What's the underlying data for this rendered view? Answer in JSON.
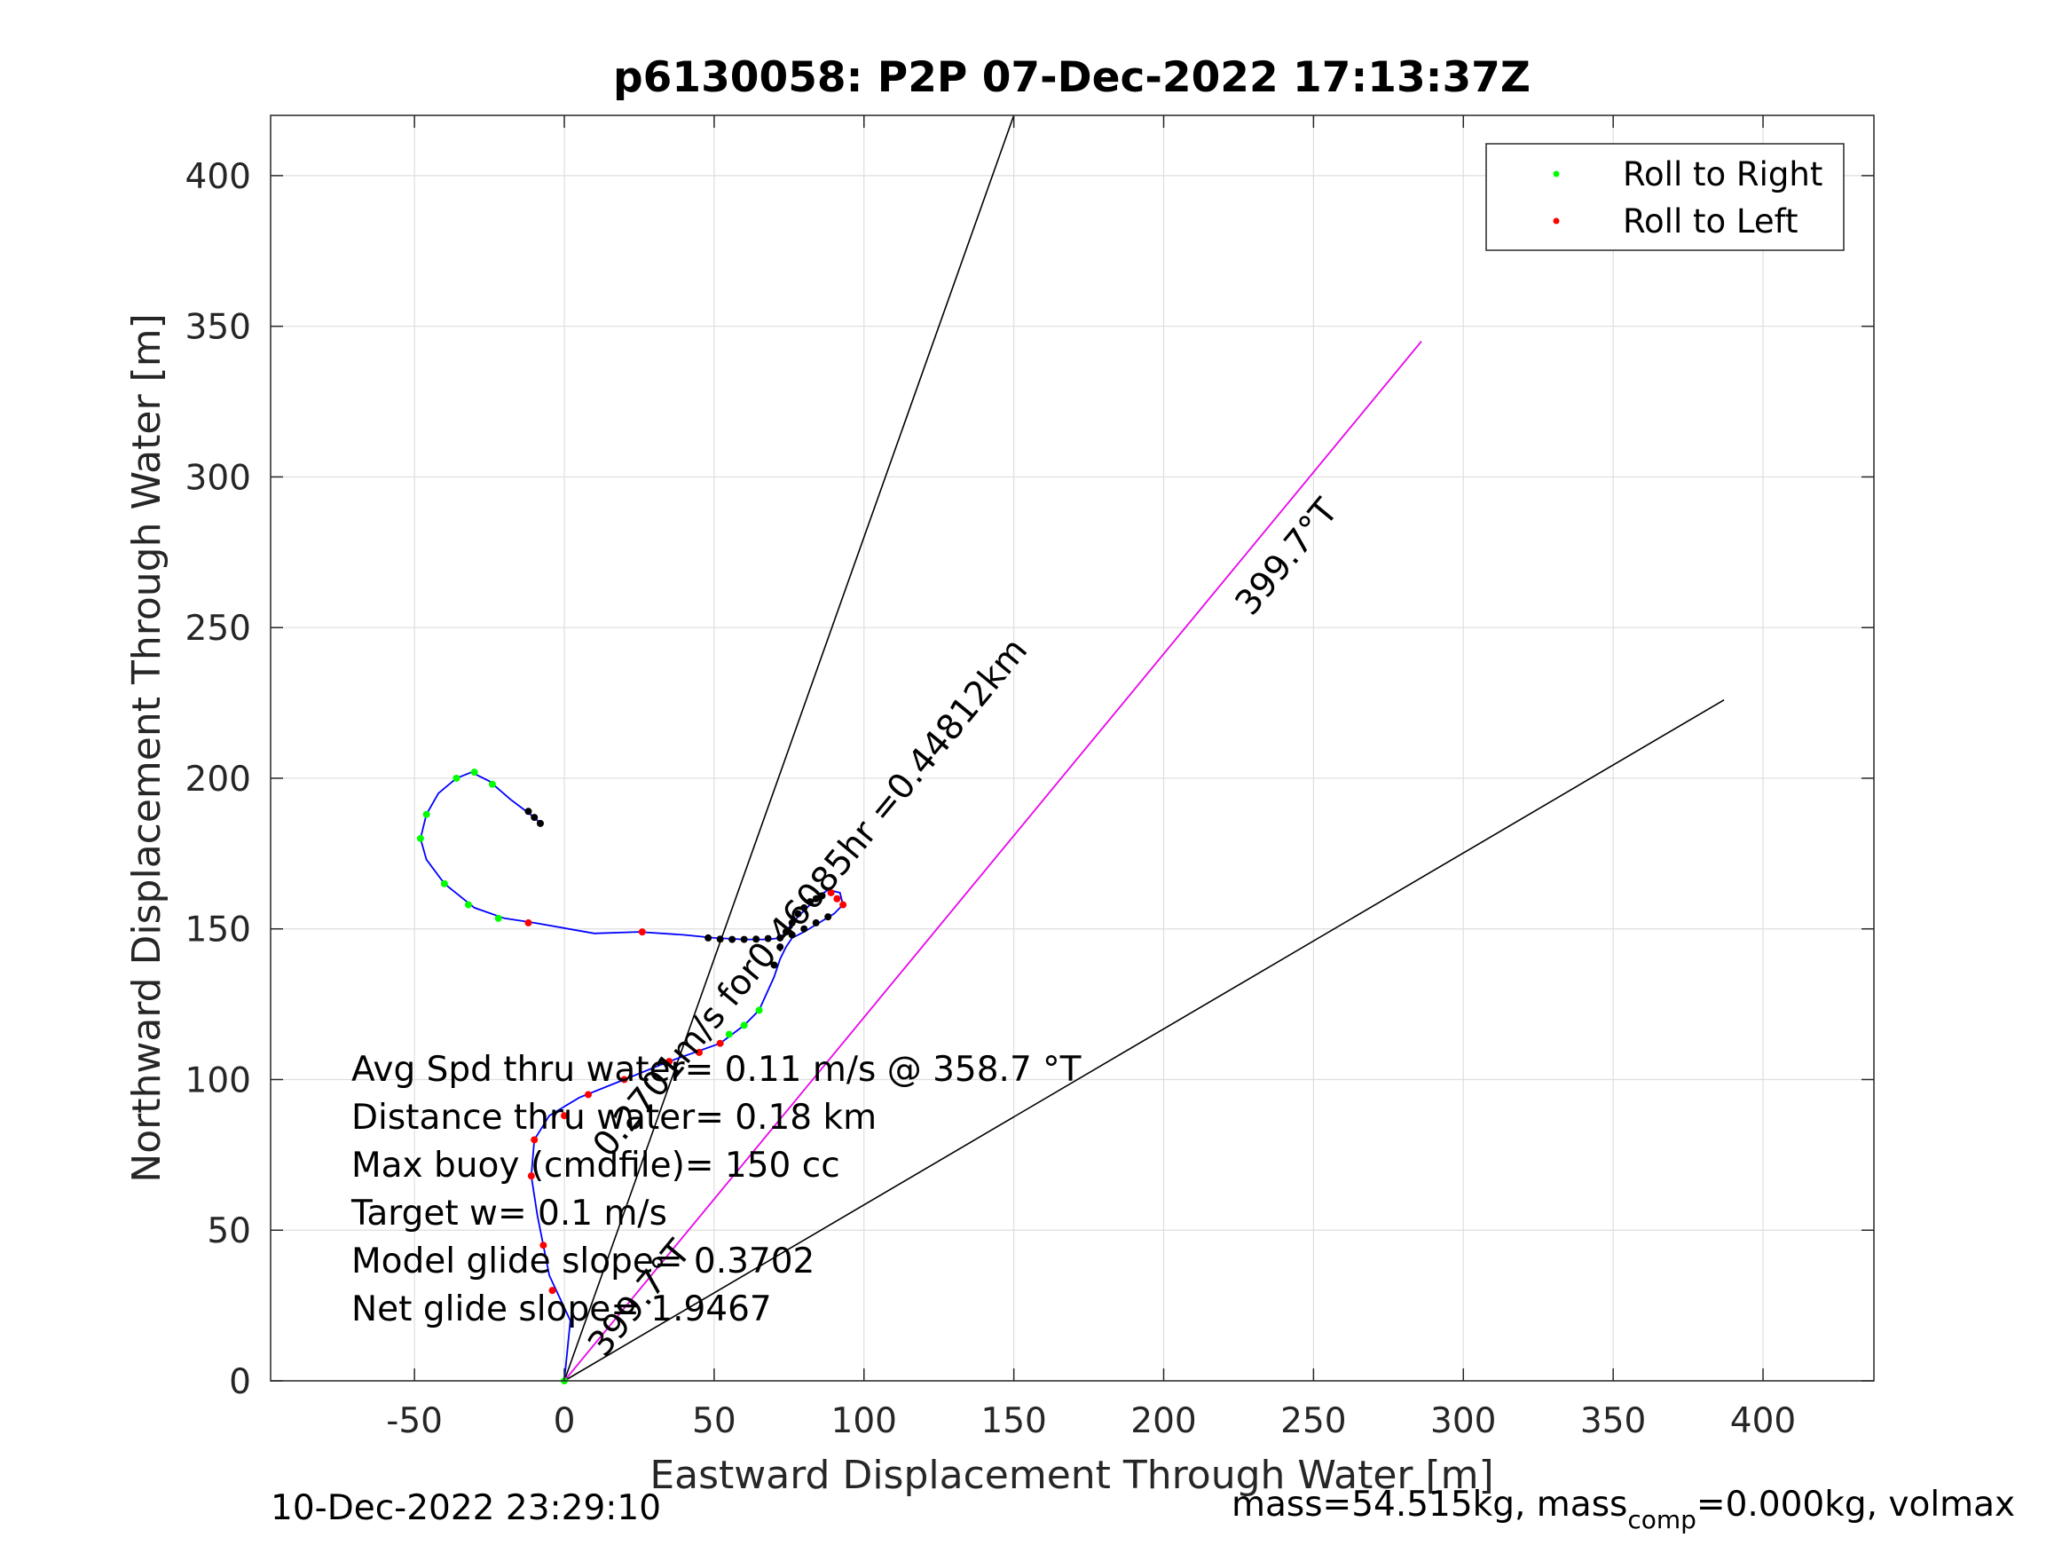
{
  "chart_data": {
    "type": "line",
    "title": "p6130058: P2P 07-Dec-2022 17:13:37Z",
    "xlabel": "Eastward Displacement Through Water [m]",
    "ylabel": "Northward Displacement Through Water [m]",
    "xlim": [
      -98,
      437
    ],
    "ylim": [
      0,
      420
    ],
    "xticks": [
      -50,
      0,
      50,
      100,
      150,
      200,
      250,
      300,
      350,
      400
    ],
    "yticks": [
      0,
      50,
      100,
      150,
      200,
      250,
      300,
      350,
      400
    ],
    "grid": true,
    "legend_position": "top-right",
    "legend": [
      {
        "label": "Roll to Right",
        "color": "#00ff00"
      },
      {
        "label": "Roll to Left",
        "color": "#ff0000"
      }
    ],
    "track_color": "#0000ff",
    "glide_segment_color": "#000000",
    "track": [
      [
        0,
        0
      ],
      [
        2,
        20
      ],
      [
        -5,
        35
      ],
      [
        -9,
        55
      ],
      [
        -11,
        68
      ],
      [
        -10,
        80
      ],
      [
        -5,
        88
      ],
      [
        5,
        94
      ],
      [
        20,
        100
      ],
      [
        35,
        106
      ],
      [
        52,
        112
      ],
      [
        60,
        118
      ],
      [
        65,
        123
      ],
      [
        70,
        134
      ],
      [
        72,
        140
      ],
      [
        74,
        144
      ],
      [
        76,
        147
      ],
      [
        80,
        149
      ],
      [
        85,
        152
      ],
      [
        90,
        155
      ],
      [
        93,
        158
      ],
      [
        92,
        162
      ],
      [
        88,
        163
      ],
      [
        84,
        160
      ],
      [
        80,
        156
      ],
      [
        76,
        152
      ],
      [
        74,
        149
      ],
      [
        72,
        147
      ],
      [
        68,
        146.5
      ],
      [
        60,
        146.5
      ],
      [
        50,
        147
      ],
      [
        40,
        148
      ],
      [
        25,
        149
      ],
      [
        10,
        148.5
      ],
      [
        -10,
        152
      ],
      [
        -20,
        153.5
      ],
      [
        -30,
        157
      ],
      [
        -40,
        165
      ],
      [
        -46,
        173
      ],
      [
        -48,
        180
      ],
      [
        -46,
        188
      ],
      [
        -42,
        195
      ],
      [
        -36,
        200
      ],
      [
        -31,
        202
      ],
      [
        -25,
        199
      ],
      [
        -18,
        193
      ],
      [
        -14,
        190
      ],
      [
        -10,
        187
      ],
      [
        -8,
        185
      ]
    ],
    "roll_right_points": [
      [
        0,
        0
      ],
      [
        -46,
        188
      ],
      [
        -48,
        180
      ],
      [
        -40,
        165
      ],
      [
        -32,
        158
      ],
      [
        -22,
        153.5
      ],
      [
        -36,
        200
      ],
      [
        -30,
        202
      ],
      [
        -24,
        198
      ],
      [
        60,
        118
      ],
      [
        65,
        123
      ],
      [
        55,
        115
      ]
    ],
    "roll_left_points": [
      [
        -11,
        68
      ],
      [
        -10,
        80
      ],
      [
        -7,
        45
      ],
      [
        -4,
        30
      ],
      [
        0,
        88
      ],
      [
        8,
        95
      ],
      [
        20,
        100
      ],
      [
        35,
        106
      ],
      [
        45,
        109
      ],
      [
        52,
        112
      ],
      [
        -12,
        152
      ],
      [
        26,
        149
      ],
      [
        91,
        160
      ],
      [
        93,
        158
      ],
      [
        89,
        162
      ]
    ],
    "glide_points": [
      [
        -8,
        185
      ],
      [
        -10,
        187
      ],
      [
        -12,
        189
      ],
      [
        48,
        147
      ],
      [
        52,
        146.6
      ],
      [
        56,
        146.5
      ],
      [
        60,
        146.5
      ],
      [
        64,
        146.6
      ],
      [
        68,
        146.8
      ],
      [
        72,
        147
      ],
      [
        76,
        148
      ],
      [
        80,
        150
      ],
      [
        84,
        152
      ],
      [
        88,
        154
      ],
      [
        74,
        149
      ],
      [
        76,
        152
      ],
      [
        78,
        155
      ],
      [
        80,
        157
      ],
      [
        82,
        159
      ],
      [
        84,
        160
      ],
      [
        86,
        161
      ],
      [
        72,
        144
      ],
      [
        70,
        138
      ]
    ],
    "reference_lines": [
      {
        "from": [
          0,
          0
        ],
        "to": [
          150,
          420
        ],
        "color": "#000000"
      },
      {
        "from": [
          0,
          0
        ],
        "to": [
          387,
          226
        ],
        "color": "#000000"
      },
      {
        "from": [
          0,
          0
        ],
        "to": [
          286,
          345
        ],
        "color": "#000000"
      },
      {
        "from": [
          0,
          0
        ],
        "to": [
          286,
          345
        ],
        "color": "#ff00ff"
      }
    ],
    "line_labels": [
      {
        "text": "399.7°T",
        "at": [
          244,
          271
        ]
      },
      {
        "text": "0.2701m/s for0.46085hr =0.44812km",
        "at": [
          85,
          158
        ]
      },
      {
        "text": "399.7°T",
        "at": [
          28,
          25
        ]
      }
    ],
    "annotations": [
      "Avg Spd thru water=  0.11 m/s @ 358.7 °T",
      "Distance thru water= 0.18 km",
      "Max buoy (cmdfile)= 150 cc",
      "Target w= 0.1 m/s",
      "Model glide slope= 0.3702",
      "Net glide slope= 1.9467"
    ]
  },
  "footer": {
    "timestamp": "10-Dec-2022 23:29:10",
    "mass_text_1": "mass=54.515kg, mass",
    "mass_sub": "comp",
    "mass_text_2": "=0.000kg, volmax"
  }
}
